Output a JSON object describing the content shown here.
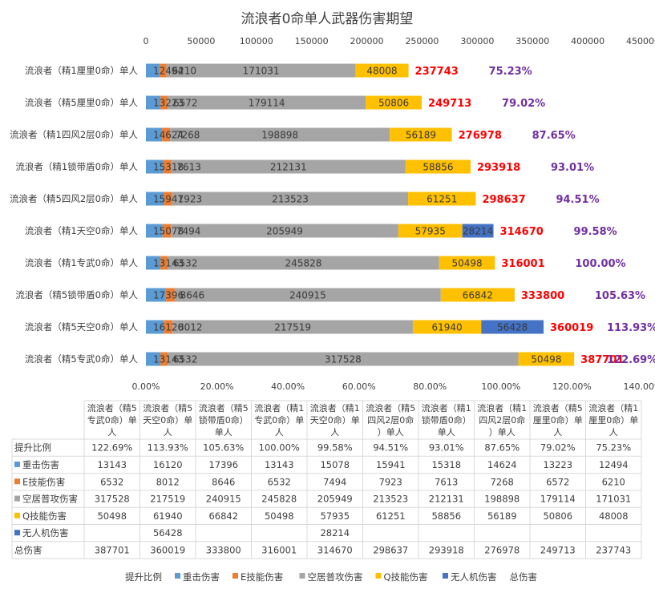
{
  "chart_data": {
    "type": "bar",
    "orientation": "horizontal",
    "stacked": true,
    "title": "流浪者0命单人武器伤害期望",
    "categories": [
      "流浪者（精1厘里0命）单人",
      "流浪者（精5厘里0命）单人",
      "流浪者（精1四风2层0命）单人",
      "流浪者（精1锁带盾0命）单人",
      "流浪者（精5四风2层0命）单人",
      "流浪者（精1天空0命）单人",
      "流浪者（精1专武0命）单人",
      "流浪者（精5锁带盾0命）单人",
      "流浪者（精5天空0命）单人",
      "流浪者（精5专武0命）单人"
    ],
    "x_top_ticks": [
      "0",
      "50000",
      "100000",
      "150000",
      "200000",
      "250000",
      "300000",
      "350000",
      "400000",
      "450000"
    ],
    "x_bottom_ticks": [
      "0.00%",
      "20.00%",
      "40.00%",
      "60.00%",
      "80.00%",
      "100.00%",
      "120.00%",
      "140.00%"
    ],
    "xlim_damage": [
      0,
      450000
    ],
    "xlim_ratio": [
      0,
      140
    ],
    "series": [
      {
        "name": "重击伤害",
        "color": "#5b9bd5",
        "values": [
          12494,
          13223,
          14624,
          15318,
          15941,
          15078,
          13143,
          17396,
          16120,
          13143
        ]
      },
      {
        "name": "E技能伤害",
        "color": "#ed7d31",
        "values": [
          6210,
          6572,
          7268,
          7613,
          7923,
          7494,
          6532,
          8646,
          8012,
          6532
        ]
      },
      {
        "name": "空居普攻伤害",
        "color": "#a5a5a5",
        "values": [
          171031,
          179114,
          198898,
          212131,
          213523,
          205949,
          245828,
          240915,
          217519,
          317528
        ]
      },
      {
        "name": "Q技能伤害",
        "color": "#ffc000",
        "values": [
          48008,
          50806,
          56189,
          58856,
          61251,
          57935,
          50498,
          66842,
          61940,
          50498
        ]
      },
      {
        "name": "无人机伤害",
        "color": "#4472c4",
        "values": [
          null,
          null,
          null,
          null,
          null,
          28214,
          null,
          null,
          56428,
          null
        ]
      }
    ],
    "total": {
      "name": "总伤害",
      "color": "#ff0000",
      "values": [
        237743,
        249713,
        276978,
        293918,
        298637,
        314670,
        316001,
        333800,
        360019,
        387701
      ]
    },
    "ratio": {
      "name": "提升比例",
      "color": "#7030a0",
      "values": [
        75.23,
        79.02,
        87.65,
        93.01,
        94.51,
        99.58,
        100.0,
        105.63,
        113.93,
        122.69
      ]
    },
    "ratio_labels": [
      "75.23%",
      "79.02%",
      "87.65%",
      "93.01%",
      "94.51%",
      "99.58%",
      "100.00%",
      "105.63%",
      "113.93%",
      "122.69%"
    ]
  },
  "table": {
    "columns": [
      "流浪者（精5专武0命）单人",
      "流浪者（精5天空0命）单人",
      "流浪者（精5锁带盾0命）单人",
      "流浪者（精1专武0命）单人",
      "流浪者（精1天空0命）单人",
      "流浪者（精5四风2层0命）单人",
      "流浪者（精1锁带盾0命）单人",
      "流浪者（精1四风2层0命）单人",
      "流浪者（精5厘里0命）单人",
      "流浪者（精1厘里0命）单人"
    ],
    "rows": [
      {
        "label": "提升比例",
        "color": null,
        "cells": [
          "122.69%",
          "113.93%",
          "105.63%",
          "100.00%",
          "99.58%",
          "94.51%",
          "93.01%",
          "87.65%",
          "79.02%",
          "75.23%"
        ]
      },
      {
        "label": "重击伤害",
        "color": "#5b9bd5",
        "cells": [
          "13143",
          "16120",
          "17396",
          "13143",
          "15078",
          "15941",
          "15318",
          "14624",
          "13223",
          "12494"
        ]
      },
      {
        "label": "E技能伤害",
        "color": "#ed7d31",
        "cells": [
          "6532",
          "8012",
          "8646",
          "6532",
          "7494",
          "7923",
          "7613",
          "7268",
          "6572",
          "6210"
        ]
      },
      {
        "label": "空居普攻伤害",
        "color": "#a5a5a5",
        "cells": [
          "317528",
          "217519",
          "240915",
          "245828",
          "205949",
          "213523",
          "212131",
          "198898",
          "179114",
          "171031"
        ]
      },
      {
        "label": "Q技能伤害",
        "color": "#ffc000",
        "cells": [
          "50498",
          "61940",
          "66842",
          "50498",
          "57935",
          "61251",
          "58856",
          "56189",
          "50806",
          "48008"
        ]
      },
      {
        "label": "无人机伤害",
        "color": "#4472c4",
        "cells": [
          "",
          "56428",
          "",
          "",
          "28214",
          "",
          "",
          "",
          "",
          ""
        ]
      },
      {
        "label": "总伤害",
        "color": null,
        "cells": [
          "387701",
          "360019",
          "333800",
          "316001",
          "314670",
          "298637",
          "293918",
          "276978",
          "249713",
          "237743"
        ]
      }
    ]
  },
  "legend": [
    {
      "label": "提升比例",
      "color": null
    },
    {
      "label": "重击伤害",
      "color": "#5b9bd5"
    },
    {
      "label": "E技能伤害",
      "color": "#ed7d31"
    },
    {
      "label": "空居普攻伤害",
      "color": "#a5a5a5"
    },
    {
      "label": "Q技能伤害",
      "color": "#ffc000"
    },
    {
      "label": "无人机伤害",
      "color": "#4472c4"
    },
    {
      "label": "总伤害",
      "color": null
    }
  ]
}
